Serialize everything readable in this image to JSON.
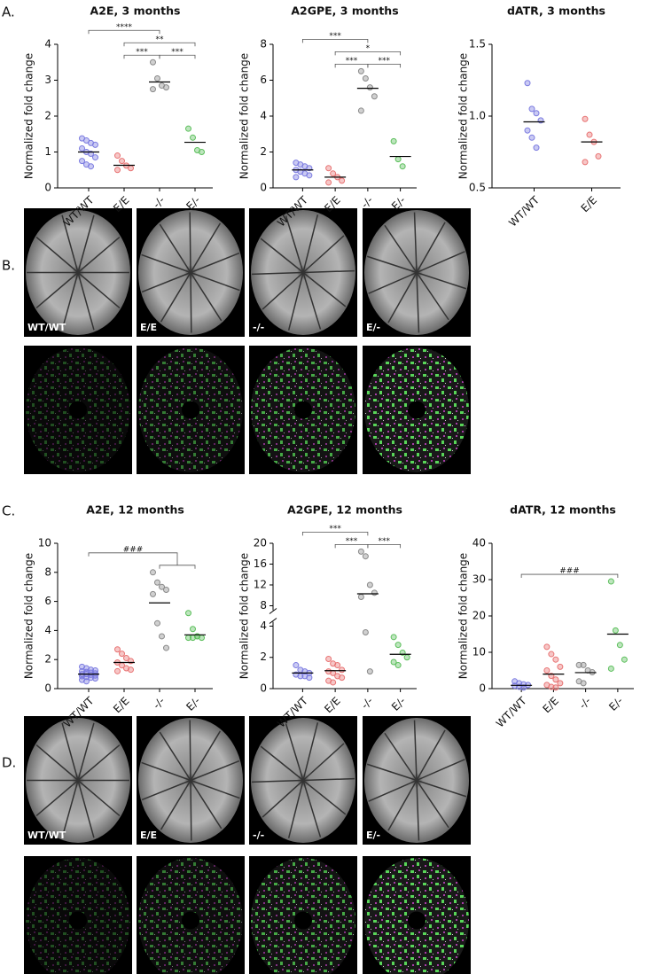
{
  "panel_labels": [
    "A.",
    "B.",
    "C.",
    "D."
  ],
  "image_panels": [
    {
      "labels": [
        "WT/WT",
        "E/E",
        "-/-",
        "E/-"
      ]
    },
    {
      "labels": [
        "WT/WT",
        "E/E",
        "-/-",
        "E/-"
      ]
    }
  ],
  "chart_data": [
    {
      "type": "dotplot",
      "title": "A2E, 3 months",
      "ylabel": "Normalized fold change",
      "categories": [
        "WT/WT",
        "E/E",
        "-/-",
        "E/-"
      ],
      "colors": [
        "#7b7be0",
        "#e87474",
        "#8a8a8a",
        "#5cbf5c"
      ],
      "points": [
        [
          1.38,
          1.32,
          1.25,
          1.2,
          1.1,
          1.0,
          0.95,
          0.85,
          0.75,
          0.65,
          0.6
        ],
        [
          0.9,
          0.75,
          0.62,
          0.55,
          0.5
        ],
        [
          3.5,
          3.05,
          2.85,
          2.8,
          2.75
        ],
        [
          1.65,
          1.4,
          1.05,
          1.0
        ]
      ],
      "means": [
        1.0,
        0.63,
        2.95,
        1.27
      ],
      "ylim": [
        0,
        4
      ],
      "yticks": [
        0,
        1,
        2,
        3,
        4
      ],
      "brackets": [
        {
          "label": "***",
          "from": "E/E",
          "to": "-/-"
        },
        {
          "label": "***",
          "from": "-/-",
          "to": "E/-"
        },
        {
          "label": "**",
          "from": "E/E",
          "to": "E/-"
        },
        {
          "label": "****",
          "from": "WT/WT",
          "to": "-/-"
        }
      ]
    },
    {
      "type": "dotplot",
      "title": "A2GPE, 3 months",
      "ylabel": "Normalized fold change",
      "categories": [
        "WT/WT",
        "E/E",
        "-/-",
        "E/-"
      ],
      "colors": [
        "#7b7be0",
        "#e87474",
        "#8a8a8a",
        "#5cbf5c"
      ],
      "points": [
        [
          1.4,
          1.3,
          1.2,
          1.1,
          1.0,
          0.9,
          0.8,
          0.7,
          0.6
        ],
        [
          1.1,
          0.8,
          0.6,
          0.4,
          0.3
        ],
        [
          6.5,
          6.1,
          5.6,
          5.1,
          4.3
        ],
        [
          2.6,
          1.6,
          1.2
        ]
      ],
      "means": [
        1.0,
        0.6,
        5.55,
        1.75
      ],
      "ylim": [
        0,
        8
      ],
      "yticks": [
        0,
        2,
        4,
        6,
        8
      ],
      "brackets": [
        {
          "label": "***",
          "from": "E/E",
          "to": "-/-"
        },
        {
          "label": "***",
          "from": "-/-",
          "to": "E/-"
        },
        {
          "label": "*",
          "from": "E/E",
          "to": "E/-"
        },
        {
          "label": "***",
          "from": "WT/WT",
          "to": "-/-"
        }
      ]
    },
    {
      "type": "dotplot",
      "title": "dATR, 3 months",
      "ylabel": "Normalized fold change",
      "categories": [
        "WT/WT",
        "E/E"
      ],
      "colors": [
        "#7b7be0",
        "#e87474"
      ],
      "points": [
        [
          1.23,
          1.05,
          1.02,
          0.97,
          0.9,
          0.85,
          0.78
        ],
        [
          0.98,
          0.87,
          0.82,
          0.72,
          0.68
        ]
      ],
      "means": [
        0.96,
        0.82
      ],
      "ylim": [
        0.5,
        1.5
      ],
      "yticks": [
        0.5,
        {
          "value": 1,
          "label": "1.0"
        },
        1.5
      ],
      "brackets": []
    },
    {
      "type": "dotplot",
      "title": "A2E, 12 months",
      "ylabel": "Normalized fold change",
      "categories": [
        "WT/WT",
        "E/E",
        "-/-",
        "E/-"
      ],
      "colors": [
        "#7b7be0",
        "#e87474",
        "#8a8a8a",
        "#5cbf5c"
      ],
      "points": [
        [
          1.5,
          1.4,
          1.3,
          1.25,
          1.2,
          1.15,
          1.1,
          1.05,
          1.0,
          1.0,
          0.95,
          0.9,
          0.85,
          0.8,
          0.75,
          0.7,
          0.6,
          0.5
        ],
        [
          2.7,
          2.4,
          2.1,
          1.9,
          1.8,
          1.6,
          1.4,
          1.3,
          1.2
        ],
        [
          8.0,
          7.3,
          7.0,
          6.8,
          6.5,
          4.5,
          3.6,
          2.8
        ],
        [
          5.2,
          4.1,
          3.6,
          3.5,
          3.5,
          3.5,
          3.6
        ]
      ],
      "means": [
        1.0,
        1.8,
        5.9,
        3.7
      ],
      "ylim": [
        0,
        10
      ],
      "yticks": [
        0,
        2,
        4,
        6,
        8,
        10
      ],
      "brackets": [
        {
          "label": "###",
          "from": "WT/WT",
          "to": [
            "-/-",
            "E/-"
          ]
        }
      ]
    },
    {
      "type": "dotplot",
      "title": "A2GPE, 12 months",
      "ylabel": "Normalized fold change",
      "categories": [
        "WT/WT",
        "E/E",
        "-/-",
        "E/-"
      ],
      "colors": [
        "#7b7be0",
        "#e87474",
        "#8a8a8a",
        "#5cbf5c"
      ],
      "points": [
        [
          1.5,
          1.2,
          1.1,
          1.0,
          0.9,
          0.8,
          0.8,
          0.7
        ],
        [
          1.9,
          1.6,
          1.5,
          1.2,
          1.1,
          1.0,
          0.8,
          0.7,
          0.5,
          0.4
        ],
        [
          18.4,
          17.5,
          12.0,
          10.5,
          9.7,
          3.6,
          1.1
        ],
        [
          3.3,
          2.8,
          2.3,
          2.0,
          1.7,
          1.5
        ]
      ],
      "means": [
        1.0,
        1.15,
        10.3,
        2.2
      ],
      "ylim": [
        0,
        20
      ],
      "ybreak": [
        4,
        8
      ],
      "yticks": [
        0,
        2,
        4,
        8,
        12,
        16,
        20
      ],
      "brackets": [
        {
          "label": "***",
          "from": "E/E",
          "to": "-/-"
        },
        {
          "label": "***",
          "from": "-/-",
          "to": "E/-"
        },
        {
          "label": "***",
          "from": "WT/WT",
          "to": "-/-"
        }
      ]
    },
    {
      "type": "dotplot",
      "title": "dATR, 12 months",
      "ylabel": "Normalized fold change",
      "categories": [
        "WT/WT",
        "E/E",
        "-/-",
        "E/-"
      ],
      "colors": [
        "#7b7be0",
        "#e87474",
        "#8a8a8a",
        "#5cbf5c"
      ],
      "points": [
        [
          2.0,
          1.5,
          1.2,
          1.0,
          0.8,
          0.5,
          0.3
        ],
        [
          11.5,
          9.5,
          8.0,
          6.0,
          5.0,
          3.5,
          2.5,
          1.5,
          1.0,
          0.5,
          0.3
        ],
        [
          6.5,
          6.5,
          5.0,
          4.5,
          2.0,
          1.5
        ],
        [
          29.5,
          16.0,
          12.0,
          8.0,
          5.5
        ]
      ],
      "means": [
        0.9,
        4.0,
        4.4,
        15.0
      ],
      "ylim": [
        0,
        40
      ],
      "yticks": [
        0,
        10,
        20,
        30,
        40
      ],
      "brackets": [
        {
          "label": "###",
          "from": "WT/WT",
          "to": "E/-"
        }
      ]
    }
  ]
}
